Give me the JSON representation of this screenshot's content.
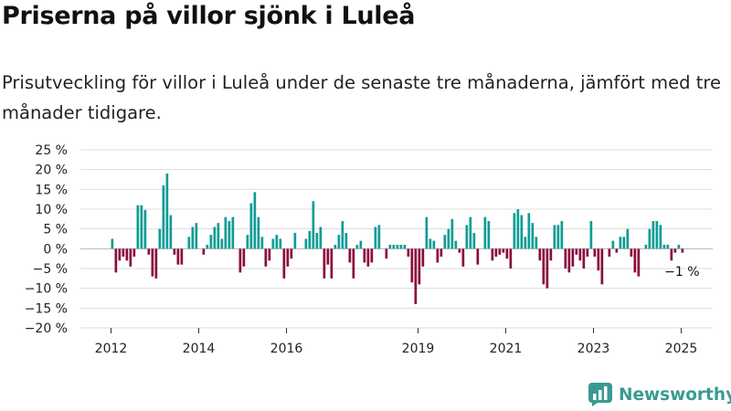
{
  "title": "Priserna på villor sjönk i Luleå",
  "subtitle": "Prisutveckling för villor i Luleå under de senaste tre månaderna, jämfört med tre månader tidigare.",
  "brand": "Newsworthy",
  "colors": {
    "positive": "#0e9c94",
    "negative": "#8b0b3f",
    "grid": "#dddddd",
    "brand": "#3a9a93"
  },
  "chart_data": {
    "type": "bar",
    "title": "Priserna på villor sjönk i Luleå",
    "xlabel": "",
    "ylabel": "",
    "ylim": [
      -20,
      25
    ],
    "yticks": [
      25,
      20,
      15,
      10,
      5,
      0,
      -5,
      -10,
      -15,
      -20
    ],
    "ytick_labels": [
      "25 %",
      "20 %",
      "15 %",
      "10 %",
      "5 %",
      "0 %",
      "−5 %",
      "−10 %",
      "−15 %",
      "−20 %"
    ],
    "xticks": [
      2012,
      2014,
      2016,
      2019,
      2021,
      2023,
      2025
    ],
    "x_start": "2012-01",
    "frequency": "monthly",
    "grid": true,
    "legend": "none",
    "values": [
      2.5,
      -6,
      -3,
      -2,
      -3,
      -4.5,
      -2,
      11,
      11,
      9.8,
      -1.5,
      -7,
      -7.5,
      5,
      16,
      19,
      8.5,
      -1.5,
      -4,
      -4,
      0,
      3,
      5.5,
      6.5,
      0,
      -1.5,
      1,
      3.5,
      5.5,
      6.5,
      2.5,
      8,
      7,
      8,
      0,
      -6,
      -4.5,
      3.5,
      11.5,
      14.3,
      8,
      3,
      -4.5,
      -3,
      2.5,
      3.5,
      2.5,
      -7.5,
      -4.5,
      -2.5,
      4,
      0,
      0,
      2.5,
      4.5,
      12,
      4,
      5.5,
      -7.5,
      -4,
      -7.5,
      1,
      3.5,
      7,
      4,
      -3.5,
      -7.5,
      1,
      2,
      -3.5,
      -4.5,
      -3.5,
      5.5,
      6,
      0,
      -2.5,
      1,
      1,
      1,
      1,
      1,
      -2,
      -8.5,
      -14,
      -9,
      -4.5,
      8,
      2.5,
      2,
      -3.5,
      -2,
      3.5,
      5,
      7.5,
      2,
      -1,
      -4.5,
      6,
      8,
      4,
      -4,
      0,
      8,
      7,
      -3,
      -2,
      -1.5,
      -1,
      -2.5,
      -5,
      9,
      10,
      8.5,
      3,
      9,
      6.5,
      3,
      -3,
      -9,
      -10,
      -3,
      6,
      6,
      7,
      -5,
      -6,
      -4.5,
      -1.5,
      -3,
      -5,
      -2,
      7,
      -2,
      -5.5,
      -9,
      0,
      -2,
      2,
      -1,
      3,
      3,
      5,
      -2,
      -6,
      -7,
      0,
      1,
      5,
      7,
      7,
      6,
      1,
      1,
      -3,
      -1,
      1,
      -1
    ],
    "annotations": [
      {
        "text": "−1 %"
      }
    ]
  }
}
